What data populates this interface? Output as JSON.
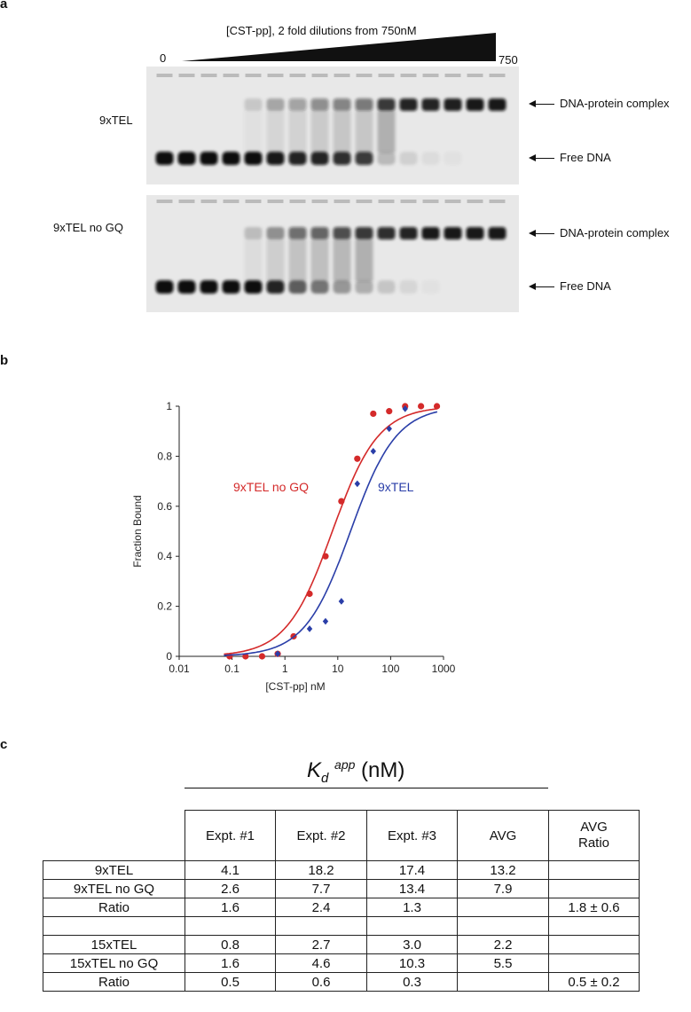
{
  "panel_a": {
    "letter": "a",
    "dilution_label": "[CST-pp], 2 fold dilutions from 750nM",
    "left_conc": "0",
    "right_conc": "750",
    "gels": [
      {
        "name": "9xTEL",
        "complex_label": "DNA-protein complex",
        "free_label": "Free DNA",
        "lane_complex": [
          0,
          0,
          0,
          0,
          0.15,
          0.3,
          0.35,
          0.45,
          0.5,
          0.55,
          0.85,
          0.95,
          0.95,
          0.97,
          1,
          1
        ],
        "lane_free": [
          1,
          1,
          1,
          1,
          1,
          0.95,
          0.9,
          0.9,
          0.85,
          0.8,
          0.2,
          0.1,
          0.05,
          0.03,
          0,
          0
        ]
      },
      {
        "name": "9xTEL no GQ",
        "complex_label": "DNA-protein complex",
        "free_label": "Free DNA",
        "lane_complex": [
          0,
          0,
          0,
          0,
          0.2,
          0.4,
          0.6,
          0.65,
          0.75,
          0.85,
          0.9,
          0.95,
          1,
          1,
          1,
          1
        ],
        "lane_free": [
          1,
          1,
          1,
          1,
          1,
          0.9,
          0.6,
          0.5,
          0.35,
          0.25,
          0.15,
          0.08,
          0.03,
          0,
          0,
          0
        ]
      }
    ]
  },
  "panel_b": {
    "letter": "b",
    "chart_data": {
      "type": "scatter",
      "xlabel": "[CST-pp] nM",
      "ylabel": "Fraction Bound",
      "x_scale": "log",
      "xlim": [
        0.01,
        1000
      ],
      "ylim": [
        0,
        1
      ],
      "x_ticks": [
        "0.01",
        "0.1",
        "1",
        "10",
        "100",
        "1000"
      ],
      "y_ticks": [
        "0",
        "0.2",
        "0.4",
        "0.6",
        "0.8",
        "1"
      ],
      "grid": false,
      "series": [
        {
          "name": "9xTEL no GQ",
          "color": "#d42a2a",
          "marker": "circle",
          "kd": 7.9,
          "x": [
            0.09,
            0.18,
            0.37,
            0.73,
            1.46,
            2.93,
            5.86,
            11.7,
            23.4,
            46.9,
            93.8,
            188,
            375,
            750
          ],
          "y": [
            0.0,
            0.0,
            0.0,
            0.01,
            0.08,
            0.25,
            0.4,
            0.62,
            0.79,
            0.97,
            0.98,
            1.0,
            1.0,
            1.0
          ]
        },
        {
          "name": "9xTEL",
          "color": "#2a3ea8",
          "marker": "diamond",
          "kd": 17.4,
          "x": [
            0.73,
            2.93,
            5.86,
            11.7,
            23.4,
            46.9,
            93.8,
            188
          ],
          "y": [
            0.01,
            0.11,
            0.14,
            0.22,
            0.69,
            0.82,
            0.91,
            0.99
          ]
        }
      ]
    }
  },
  "panel_c": {
    "letter": "c",
    "title_k": "K",
    "title_sub": "d",
    "title_sup": "app",
    "title_unit": " (nM)",
    "headers": [
      "Expt. #1",
      "Expt. #2",
      "Expt. #3",
      "AVG"
    ],
    "ratio_header_line1": "AVG",
    "ratio_header_line2": "Ratio",
    "rows": [
      [
        "9xTEL",
        "4.1",
        "18.2",
        "17.4",
        "13.2",
        ""
      ],
      [
        "9xTEL no GQ",
        "2.6",
        "7.7",
        "13.4",
        "7.9",
        ""
      ],
      [
        "Ratio",
        "1.6",
        "2.4",
        "1.3",
        "",
        "1.8 ± 0.6"
      ],
      [
        "",
        "",
        "",
        "",
        "",
        ""
      ],
      [
        "15xTEL",
        "0.8",
        "2.7",
        "3.0",
        "2.2",
        ""
      ],
      [
        "15xTEL no GQ",
        "1.6",
        "4.6",
        "10.3",
        "5.5",
        ""
      ],
      [
        "Ratio",
        "0.5",
        "0.6",
        "0.3",
        "",
        "0.5 ± 0.2"
      ]
    ]
  }
}
